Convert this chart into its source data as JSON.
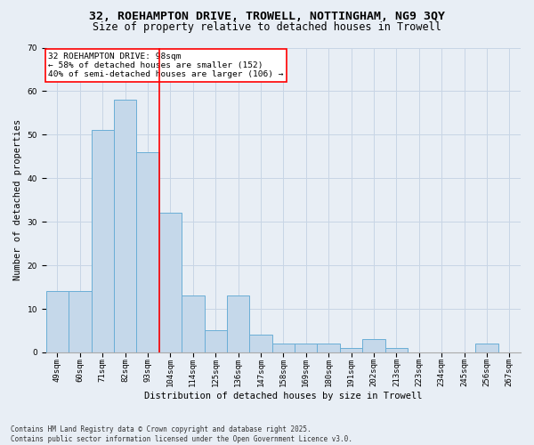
{
  "title_line1": "32, ROEHAMPTON DRIVE, TROWELL, NOTTINGHAM, NG9 3QY",
  "title_line2": "Size of property relative to detached houses in Trowell",
  "xlabel": "Distribution of detached houses by size in Trowell",
  "ylabel": "Number of detached properties",
  "categories": [
    "49sqm",
    "60sqm",
    "71sqm",
    "82sqm",
    "93sqm",
    "104sqm",
    "114sqm",
    "125sqm",
    "136sqm",
    "147sqm",
    "158sqm",
    "169sqm",
    "180sqm",
    "191sqm",
    "202sqm",
    "213sqm",
    "223sqm",
    "234sqm",
    "245sqm",
    "256sqm",
    "267sqm"
  ],
  "values": [
    14,
    14,
    51,
    58,
    46,
    32,
    13,
    5,
    13,
    4,
    2,
    2,
    2,
    1,
    3,
    1,
    0,
    0,
    0,
    2,
    0
  ],
  "bar_color": "#c5d8ea",
  "bar_edge_color": "#6aaed6",
  "bar_width": 1.0,
  "ylim": [
    0,
    70
  ],
  "yticks": [
    0,
    10,
    20,
    30,
    40,
    50,
    60,
    70
  ],
  "grid_color": "#c8d5e5",
  "bg_color": "#e8eef5",
  "vline_x": 4.5,
  "vline_color": "red",
  "annotation_text": "32 ROEHAMPTON DRIVE: 98sqm\n← 58% of detached houses are smaller (152)\n40% of semi-detached houses are larger (106) →",
  "annotation_box_color": "white",
  "annotation_box_edgecolor": "red",
  "footer_text": "Contains HM Land Registry data © Crown copyright and database right 2025.\nContains public sector information licensed under the Open Government Licence v3.0.",
  "title_fontsize": 9.5,
  "subtitle_fontsize": 8.5,
  "tick_fontsize": 6.5,
  "label_fontsize": 7.5,
  "annotation_fontsize": 6.8,
  "footer_fontsize": 5.5
}
